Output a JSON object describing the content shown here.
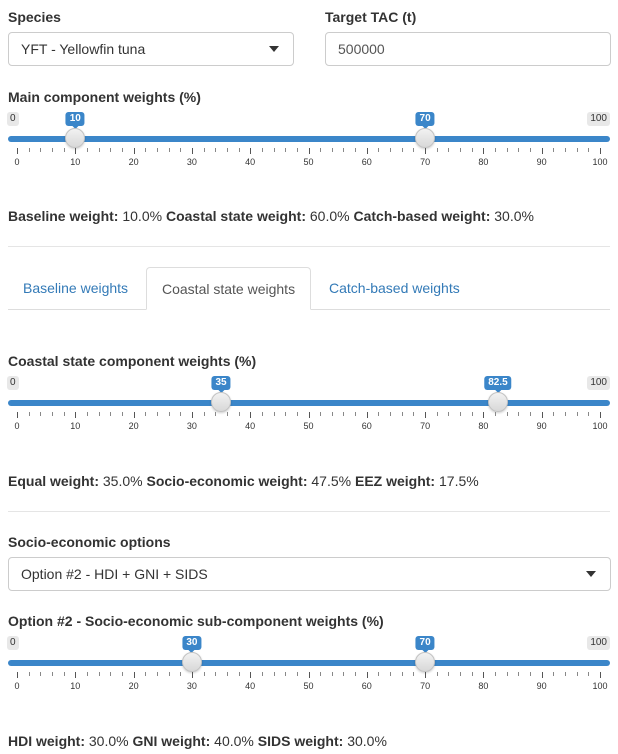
{
  "species": {
    "label": "Species",
    "selected": "YFT - Yellowfin tuna"
  },
  "target_tac": {
    "label": "Target TAC (t)",
    "value": "500000"
  },
  "main_weights": {
    "label": "Main component weights (%)",
    "min": "0",
    "max": "100",
    "from": 10,
    "to": 70,
    "from_label": "10",
    "to_label": "70",
    "tick_labels": [
      "0",
      "10",
      "20",
      "30",
      "40",
      "50",
      "60",
      "70",
      "80",
      "90",
      "100"
    ]
  },
  "main_summary": {
    "baseline_label": "Baseline weight:",
    "baseline_value": "10.0%",
    "coastal_label": "Coastal state weight:",
    "coastal_value": "60.0%",
    "catch_label": "Catch-based weight:",
    "catch_value": "30.0%"
  },
  "tabs": [
    {
      "label": "Baseline weights",
      "active": false
    },
    {
      "label": "Coastal state weights",
      "active": true
    },
    {
      "label": "Catch-based weights",
      "active": false
    }
  ],
  "coastal_weights": {
    "label": "Coastal state component weights (%)",
    "min": "0",
    "max": "100",
    "from": 35,
    "to": 82.5,
    "from_label": "35",
    "to_label": "82.5",
    "tick_labels": [
      "0",
      "10",
      "20",
      "30",
      "40",
      "50",
      "60",
      "70",
      "80",
      "90",
      "100"
    ]
  },
  "coastal_summary": {
    "equal_label": "Equal weight:",
    "equal_value": "35.0%",
    "socio_label": "Socio-economic weight:",
    "socio_value": "47.5%",
    "eez_label": "EEZ weight:",
    "eez_value": "17.5%"
  },
  "socio_options": {
    "label": "Socio-economic options",
    "selected": "Option #2 - HDI + GNI + SIDS"
  },
  "socio_weights": {
    "label": "Option #2 - Socio-economic sub-component weights (%)",
    "min": "0",
    "max": "100",
    "from": 30,
    "to": 70,
    "from_label": "30",
    "to_label": "70",
    "tick_labels": [
      "0",
      "10",
      "20",
      "30",
      "40",
      "50",
      "60",
      "70",
      "80",
      "90",
      "100"
    ]
  },
  "socio_summary": {
    "hdi_label": "HDI weight:",
    "hdi_value": "30.0%",
    "gni_label": "GNI weight:",
    "gni_value": "40.0%",
    "sids_label": "SIDS weight:",
    "sids_value": "30.0%"
  },
  "colors": {
    "accent": "#3b86c9",
    "link": "#337ab7"
  },
  "icons": {
    "dropdown": "caret-down-icon"
  }
}
